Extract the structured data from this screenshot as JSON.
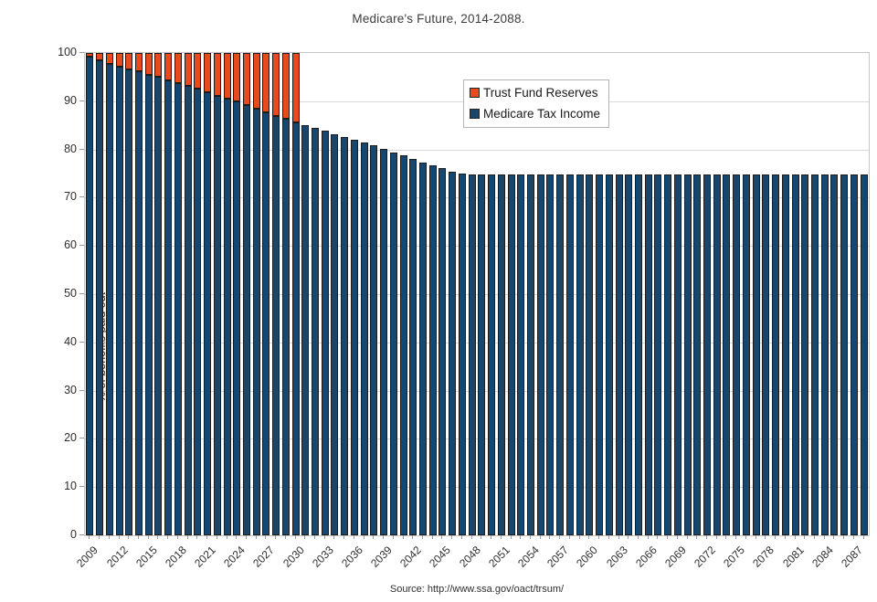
{
  "chart": {
    "title": "Medicare's Future, 2014-2088.",
    "ylabel": "% of benefits paid out",
    "source": "Source: http://www.ssa.gov/oact/trsum/",
    "legend": [
      {
        "label": "Trust Fund Reserves",
        "color": "#e8491d"
      },
      {
        "label": "Medicare Tax Income",
        "color": "#17466e"
      }
    ]
  },
  "chart_data": {
    "type": "bar",
    "stacked": true,
    "title": "Medicare's Future, 2014-2088.",
    "xlabel": "",
    "ylabel": "% of benefits paid out",
    "ylim": [
      0,
      100
    ],
    "ytick_step": 10,
    "xtick_label_every": 3,
    "grid": "horizontal",
    "legend_position": "upper-right-of-center",
    "source": "Source: http://www.ssa.gov/oact/trsum/",
    "x": [
      2009,
      2010,
      2011,
      2012,
      2013,
      2014,
      2015,
      2016,
      2017,
      2018,
      2019,
      2020,
      2021,
      2022,
      2023,
      2024,
      2025,
      2026,
      2027,
      2028,
      2029,
      2030,
      2031,
      2032,
      2033,
      2034,
      2035,
      2036,
      2037,
      2038,
      2039,
      2040,
      2041,
      2042,
      2043,
      2044,
      2045,
      2046,
      2047,
      2048,
      2049,
      2050,
      2051,
      2052,
      2053,
      2054,
      2055,
      2056,
      2057,
      2058,
      2059,
      2060,
      2061,
      2062,
      2063,
      2064,
      2065,
      2066,
      2067,
      2068,
      2069,
      2070,
      2071,
      2072,
      2073,
      2074,
      2075,
      2076,
      2077,
      2078,
      2079,
      2080,
      2081,
      2082,
      2083,
      2084,
      2085,
      2086,
      2087,
      2088
    ],
    "series": [
      {
        "name": "Medicare Tax Income",
        "color": "#17466e",
        "values": [
          99.2,
          98.5,
          97.8,
          97.1,
          96.6,
          96.2,
          95.5,
          95.0,
          94.3,
          93.7,
          93.2,
          92.6,
          91.8,
          91.1,
          90.6,
          90.0,
          89.2,
          88.5,
          87.7,
          87.0,
          86.3,
          85.7,
          85.0,
          84.4,
          83.9,
          83.1,
          82.5,
          82.0,
          81.4,
          80.8,
          80.1,
          79.3,
          78.7,
          78.0,
          77.3,
          76.7,
          76.1,
          75.4,
          75.0,
          74.9,
          74.9,
          74.9,
          74.9,
          74.9,
          74.9,
          74.9,
          74.9,
          74.9,
          74.9,
          74.9,
          74.9,
          74.9,
          74.9,
          74.9,
          74.9,
          74.9,
          74.9,
          74.9,
          74.9,
          74.9,
          74.9,
          74.9,
          74.9,
          74.9,
          74.9,
          74.9,
          74.9,
          74.9,
          74.9,
          74.9,
          74.9,
          74.9,
          74.9,
          74.9,
          74.9,
          74.9,
          74.9,
          74.9,
          74.9,
          74.9
        ]
      },
      {
        "name": "Trust Fund Reserves",
        "color": "#e8491d",
        "values": [
          0.8,
          1.5,
          2.2,
          2.9,
          3.4,
          3.8,
          4.5,
          5.0,
          5.7,
          6.3,
          6.8,
          7.4,
          8.2,
          8.9,
          9.4,
          10.0,
          10.8,
          11.5,
          12.3,
          13.0,
          13.7,
          14.3,
          0,
          0,
          0,
          0,
          0,
          0,
          0,
          0,
          0,
          0,
          0,
          0,
          0,
          0,
          0,
          0,
          0,
          0,
          0,
          0,
          0,
          0,
          0,
          0,
          0,
          0,
          0,
          0,
          0,
          0,
          0,
          0,
          0,
          0,
          0,
          0,
          0,
          0,
          0,
          0,
          0,
          0,
          0,
          0,
          0,
          0,
          0,
          0,
          0,
          0,
          0,
          0,
          0,
          0,
          0,
          0,
          0,
          0
        ]
      }
    ]
  }
}
